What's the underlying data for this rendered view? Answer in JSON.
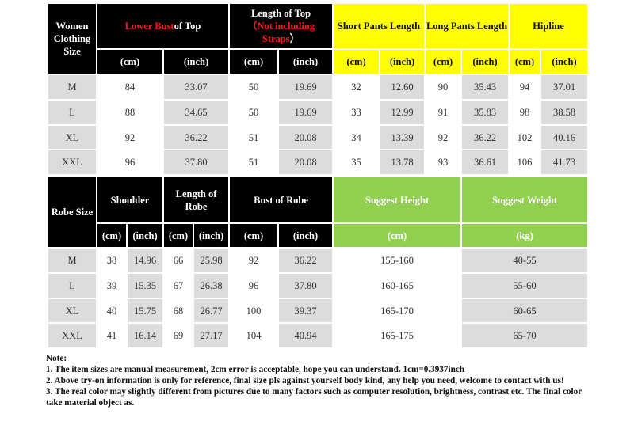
{
  "top_table": {
    "header": {
      "size_label": "Women Clothing Size",
      "lower_bust_red": "Lower Bust",
      "lower_bust_rest": " of Top",
      "length_top_line1": "Length of Top",
      "length_top_red": "（Not including Straps",
      "length_top_close": "）",
      "short_pants": "Short Pants Length",
      "long_pants": "Long Pants Length",
      "hipline": "Hipline"
    },
    "units": [
      "(cm)",
      "(inch)",
      "(cm)",
      "(inch)",
      "(cm)",
      "(inch)",
      "(cm)",
      "(inch)",
      "(cm)",
      "(inch)"
    ],
    "rows": [
      {
        "size": "M",
        "values": [
          "84",
          "33.07",
          "50",
          "19.69",
          "32",
          "12.60",
          "90",
          "35.43",
          "94",
          "37.01"
        ]
      },
      {
        "size": "L",
        "values": [
          "88",
          "34.65",
          "50",
          "19.69",
          "33",
          "12.99",
          "91",
          "35.83",
          "98",
          "38.58"
        ]
      },
      {
        "size": "XL",
        "values": [
          "92",
          "36.22",
          "51",
          "20.08",
          "34",
          "13.39",
          "92",
          "36.22",
          "102",
          "40.16"
        ]
      },
      {
        "size": "XXL",
        "values": [
          "96",
          "37.80",
          "51",
          "20.08",
          "35",
          "13.78",
          "93",
          "36.61",
          "106",
          "41.73"
        ]
      }
    ]
  },
  "robe_table": {
    "header": {
      "size_label": "Robe Size",
      "shoulder": "Shoulder",
      "length_robe": "Length of Robe",
      "bust_robe": "Bust of Robe",
      "suggest_height": "Suggest Height",
      "suggest_weight": "Suggest Weight"
    },
    "units": [
      "(cm)",
      "(inch)",
      "(cm)",
      "(inch)",
      "(cm)",
      "(inch)",
      "(cm)",
      "(kg)"
    ],
    "rows": [
      {
        "size": "M",
        "values": [
          "38",
          "14.96",
          "66",
          "25.98",
          "92",
          "36.22",
          "155-160",
          "40-55"
        ]
      },
      {
        "size": "L",
        "values": [
          "39",
          "15.35",
          "67",
          "26.38",
          "96",
          "37.80",
          "160-165",
          "55-60"
        ]
      },
      {
        "size": "XL",
        "values": [
          "40",
          "15.75",
          "68",
          "26.77",
          "100",
          "39.37",
          "165-170",
          "60-65"
        ]
      },
      {
        "size": "XXL",
        "values": [
          "41",
          "16.14",
          "69",
          "27.17",
          "104",
          "40.94",
          "165-175",
          "65-70"
        ]
      }
    ]
  },
  "notes": {
    "title": "Note:",
    "lines": [
      "1. The item sizes are manual measurement, 2cm error is acceptable, hope you can understand. 1cm=0.3937inch",
      "2. Above try-on information is only for reference, final size pls against yourself body kind, any help you need, welcome to contact with us!",
      "3. The real color may slightly different from pictures due to many factors such as computer resolution, brightness, contrast etc. The final color take material object as."
    ]
  },
  "colors": {
    "header_black": "#000000",
    "header_yellow": "#ffff00",
    "header_green": "#92d050",
    "accent_red": "#ff1a1a",
    "row_gray": "#dcdcdc"
  }
}
